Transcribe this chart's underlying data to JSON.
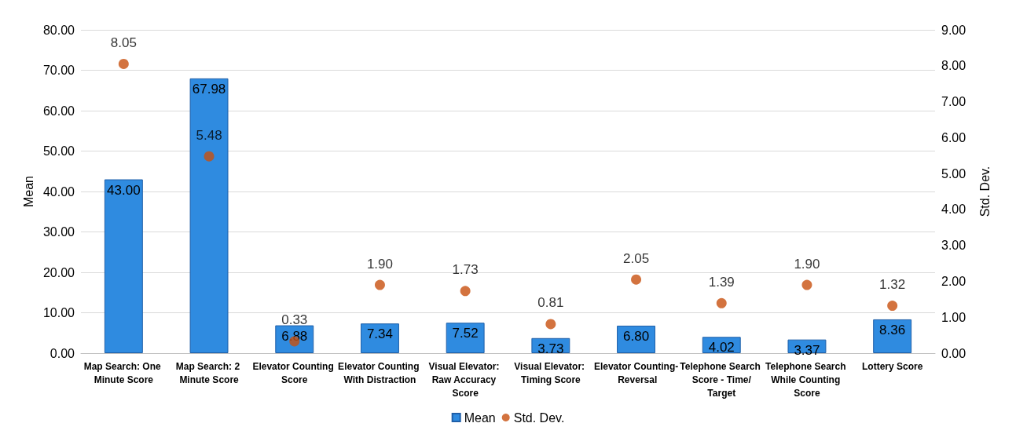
{
  "chart_data": {
    "type": "bar",
    "ylabel": "Mean",
    "y2label": "Std. Dev.",
    "categories": [
      "Map Search: One Minute Score",
      "Map Search: 2 Minute Score",
      "Elevator Counting Score",
      "Elevator Counting With Distraction",
      "Visual Elevator: Raw Accuracy Score",
      "Visual Elevator: Timing Score",
      "Elevator Counting- Reversal",
      "Telephone Search Score - Time/Target",
      "Telephone Search While Counting Score",
      "Lottery Score"
    ],
    "series": [
      {
        "name": "Mean",
        "color": "#2f8be0",
        "values": [
          43.0,
          67.98,
          6.88,
          7.34,
          7.52,
          3.73,
          6.8,
          4.02,
          3.37,
          8.36
        ],
        "value_labels": [
          "43.00",
          "67.98",
          "6.88",
          "7.34",
          "7.52",
          "3.73",
          "6.80",
          "4.02",
          "3.37",
          "8.36"
        ]
      },
      {
        "name": "Std. Dev.",
        "type": "scatter",
        "axis": "y2",
        "color": "#c8500f",
        "values": [
          8.05,
          5.48,
          0.33,
          1.9,
          1.73,
          0.81,
          2.05,
          1.39,
          1.9,
          1.32
        ],
        "value_labels": [
          "8.05",
          "5.48",
          "0.33",
          "1.90",
          "1.73",
          "0.81",
          "2.05",
          "1.39",
          "1.90",
          "1.32"
        ]
      }
    ],
    "ylim": [
      0,
      80
    ],
    "yticks": [
      {
        "value": 0,
        "label": "0.00"
      },
      {
        "value": 10,
        "label": "10.00"
      },
      {
        "value": 20,
        "label": "20.00"
      },
      {
        "value": 30,
        "label": "30.00"
      },
      {
        "value": 40,
        "label": "40.00"
      },
      {
        "value": 50,
        "label": "50.00"
      },
      {
        "value": 60,
        "label": "60.00"
      },
      {
        "value": 70,
        "label": "70.00"
      },
      {
        "value": 80,
        "label": "80.00"
      }
    ],
    "y2lim": [
      0,
      9
    ],
    "y2ticks": [
      {
        "value": 0,
        "label": "0.00"
      },
      {
        "value": 1,
        "label": "1.00"
      },
      {
        "value": 2,
        "label": "2.00"
      },
      {
        "value": 3,
        "label": "3.00"
      },
      {
        "value": 4,
        "label": "4.00"
      },
      {
        "value": 5,
        "label": "5.00"
      },
      {
        "value": 6,
        "label": "6.00"
      },
      {
        "value": 7,
        "label": "7.00"
      },
      {
        "value": 8,
        "label": "8.00"
      },
      {
        "value": 9,
        "label": "9.00"
      }
    ],
    "grid": "y",
    "legend": "bottom",
    "marker": "circle"
  }
}
